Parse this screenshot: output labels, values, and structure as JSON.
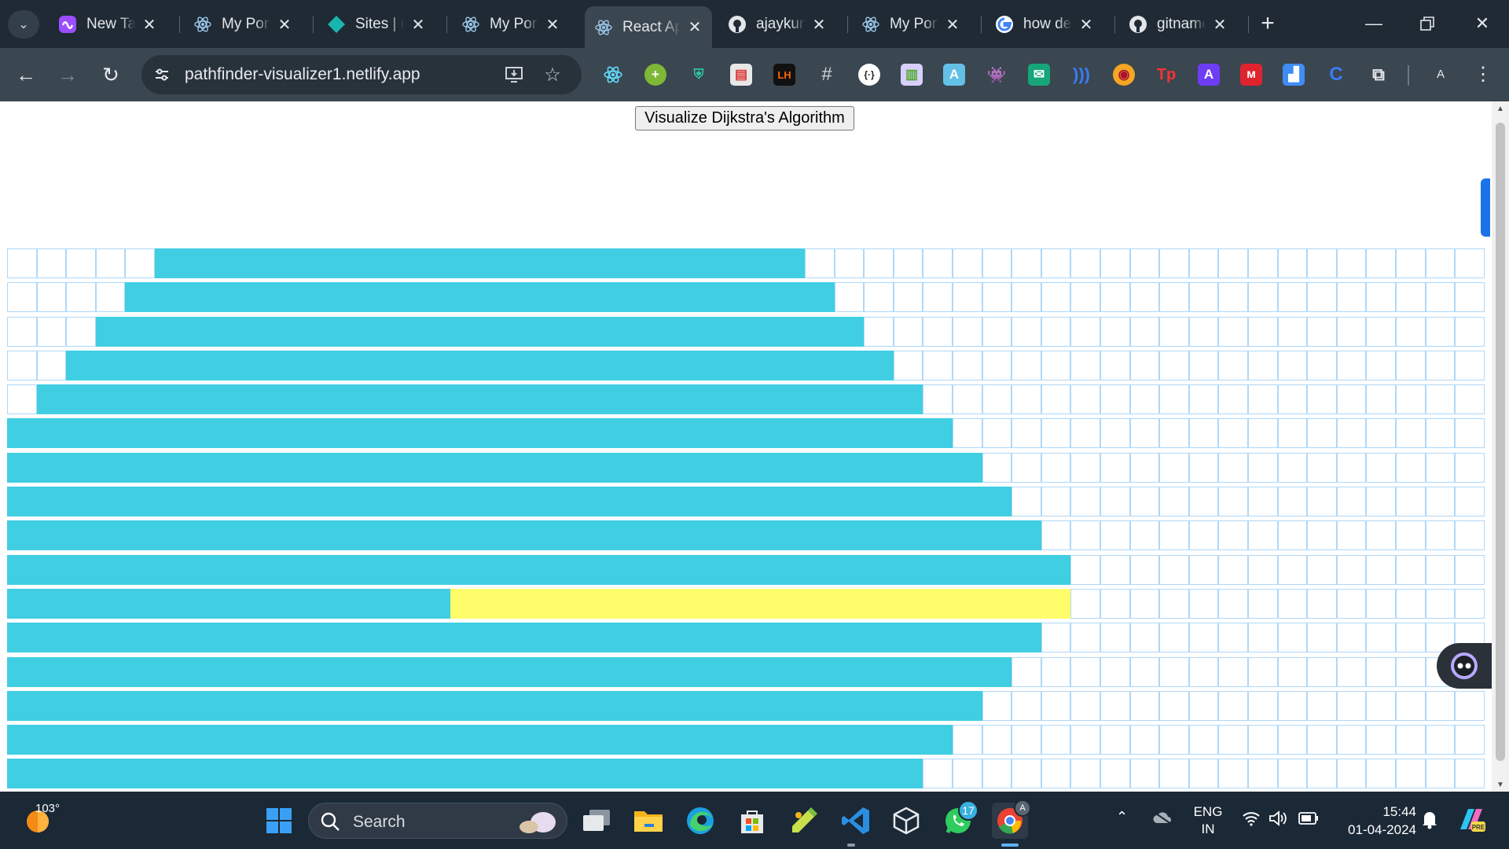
{
  "browser": {
    "tabs": [
      {
        "title": "New Tab",
        "icon": "copilot-tab-icon",
        "active": false
      },
      {
        "title": "My Portfolio",
        "icon": "react-tab-icon",
        "active": false
      },
      {
        "title": "Sites | netlify",
        "icon": "netlify-tab-icon",
        "active": false
      },
      {
        "title": "My Portfolio",
        "icon": "react-tab-icon",
        "active": false
      },
      {
        "title": "React App",
        "icon": "react-tab-icon",
        "active": true
      },
      {
        "title": "ajaykumar",
        "icon": "github-tab-icon",
        "active": false
      },
      {
        "title": "My Portfolio",
        "icon": "react-tab-icon",
        "active": false
      },
      {
        "title": "how deploy",
        "icon": "google-tab-icon",
        "active": false
      },
      {
        "title": "gitname",
        "icon": "github-tab-icon",
        "active": false
      }
    ],
    "url": "pathfinder-visualizer1.netlify.app",
    "profile_initial": "A",
    "extensions": [
      "react-devtools",
      "plus-ext",
      "shield-ext",
      "printer-ext",
      "lh-ext",
      "hash-ext",
      "code-ext",
      "books-ext",
      "notebook-ext",
      "ghost-ext",
      "mail-ext",
      "wave-ext",
      "globe-ext",
      "tp-ext",
      "a-ext",
      "m-ext",
      "square-ext",
      "c-ext",
      "puzzle-ext"
    ]
  },
  "page": {
    "visualize_button": "Visualize Dijkstra's Algorithm",
    "grid": {
      "columns": 50,
      "rows": 16,
      "visited_ranges": [
        [
          5,
          26
        ],
        [
          4,
          27
        ],
        [
          3,
          28
        ],
        [
          2,
          29
        ],
        [
          1,
          30
        ],
        [
          0,
          31
        ],
        [
          0,
          32
        ],
        [
          0,
          33
        ],
        [
          0,
          34
        ],
        [
          0,
          35
        ],
        [
          0,
          14
        ],
        [
          0,
          34
        ],
        [
          0,
          33
        ],
        [
          0,
          32
        ],
        [
          0,
          31
        ],
        [
          0,
          30
        ]
      ],
      "path_row": 10,
      "path_range": [
        15,
        35
      ],
      "colors": {
        "visited": "#40cee3",
        "path": "#fffe6a",
        "border": "#afd8f8"
      }
    }
  },
  "taskbar": {
    "temperature": "103°",
    "search_placeholder": "Search",
    "whatsapp_badge": "17",
    "chrome_badge": "A",
    "language": "ENG",
    "region": "IN",
    "time": "15:44",
    "date": "01-04-2024"
  }
}
